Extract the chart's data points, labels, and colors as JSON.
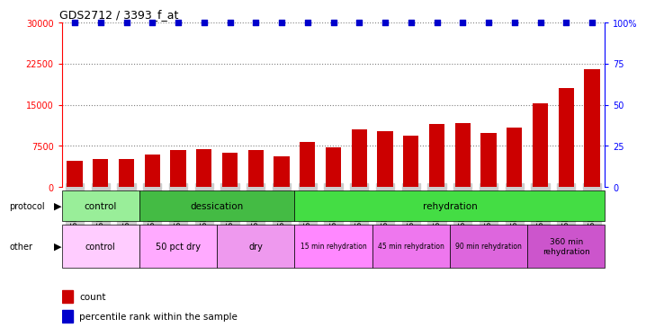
{
  "title": "GDS2712 / 3393_f_at",
  "samples": [
    "GSM21640",
    "GSM21641",
    "GSM21642",
    "GSM21643",
    "GSM21644",
    "GSM21645",
    "GSM21646",
    "GSM21647",
    "GSM21648",
    "GSM21649",
    "GSM21650",
    "GSM21651",
    "GSM21652",
    "GSM21653",
    "GSM21654",
    "GSM21655",
    "GSM21656",
    "GSM21657",
    "GSM21658",
    "GSM21659",
    "GSM21660"
  ],
  "bar_values": [
    4800,
    5200,
    5100,
    5900,
    6800,
    6900,
    6300,
    6800,
    5600,
    8200,
    7200,
    10500,
    10200,
    9300,
    11500,
    11700,
    9800,
    10800,
    15200,
    18000,
    21500
  ],
  "percentile_values": [
    100,
    100,
    100,
    100,
    100,
    100,
    100,
    100,
    100,
    100,
    100,
    100,
    100,
    100,
    100,
    100,
    100,
    100,
    100,
    100,
    100
  ],
  "bar_color": "#cc0000",
  "percentile_color": "#0000cc",
  "ylim_left": [
    0,
    30000
  ],
  "ylim_right": [
    0,
    100
  ],
  "yticks_left": [
    0,
    7500,
    15000,
    22500,
    30000
  ],
  "yticks_right": [
    0,
    25,
    50,
    75,
    100
  ],
  "ytick_labels_right": [
    "0",
    "25",
    "50",
    "75",
    "100%"
  ],
  "grid_lines": [
    7500,
    15000,
    22500,
    30000
  ],
  "protocol_segments": [
    {
      "start": 0,
      "end": 3,
      "color": "#99ee99",
      "label": "control"
    },
    {
      "start": 3,
      "end": 9,
      "color": "#44bb44",
      "label": "dessication"
    },
    {
      "start": 9,
      "end": 21,
      "color": "#44dd44",
      "label": "rehydration"
    }
  ],
  "other_segments": [
    {
      "start": 0,
      "end": 3,
      "color": "#ffccff",
      "label": "control",
      "fontsize": 7
    },
    {
      "start": 3,
      "end": 6,
      "color": "#ffaaff",
      "label": "50 pct dry",
      "fontsize": 7
    },
    {
      "start": 6,
      "end": 9,
      "color": "#ee99ee",
      "label": "dry",
      "fontsize": 7
    },
    {
      "start": 9,
      "end": 12,
      "color": "#ff88ff",
      "label": "15 min rehydration",
      "fontsize": 5.5
    },
    {
      "start": 12,
      "end": 15,
      "color": "#ee77ee",
      "label": "45 min rehydration",
      "fontsize": 5.5
    },
    {
      "start": 15,
      "end": 18,
      "color": "#dd66dd",
      "label": "90 min rehydration",
      "fontsize": 5.5
    },
    {
      "start": 18,
      "end": 21,
      "color": "#cc55cc",
      "label": "360 min\nrehydration",
      "fontsize": 6.5
    }
  ],
  "legend_count_color": "#cc0000",
  "legend_pct_color": "#0000cc"
}
